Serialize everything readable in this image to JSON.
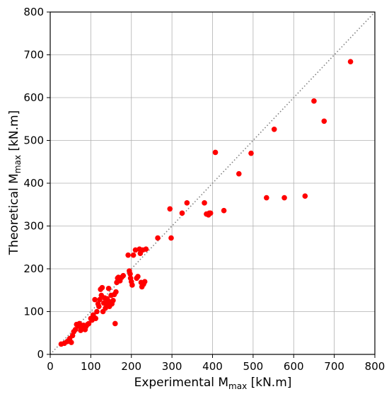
{
  "chart_data": {
    "type": "scatter",
    "xlabel": {
      "main": "Experimental M",
      "sub": "max",
      "unit": " [kN.m]"
    },
    "ylabel": {
      "main": "Theoretical M",
      "sub": "max",
      "unit": " [kN.m]"
    },
    "xlim": [
      0,
      800
    ],
    "ylim": [
      0,
      800
    ],
    "xticks": [
      "0",
      "100",
      "200",
      "300",
      "400",
      "500",
      "600",
      "700",
      "800"
    ],
    "yticks": [
      "0",
      "100",
      "200",
      "300",
      "400",
      "500",
      "600",
      "700",
      "800"
    ],
    "grid": true,
    "reference_line": {
      "style": "dotted",
      "color": "#808080",
      "from": [
        0,
        0
      ],
      "to": [
        800,
        800
      ]
    },
    "marker_color": "#ff0000",
    "points": [
      [
        27,
        24
      ],
      [
        35,
        26
      ],
      [
        42,
        30
      ],
      [
        48,
        37
      ],
      [
        52,
        28
      ],
      [
        55,
        44
      ],
      [
        58,
        53
      ],
      [
        62,
        58
      ],
      [
        65,
        70
      ],
      [
        70,
        66
      ],
      [
        72,
        72
      ],
      [
        75,
        56
      ],
      [
        78,
        60
      ],
      [
        82,
        68
      ],
      [
        86,
        58
      ],
      [
        88,
        65
      ],
      [
        92,
        70
      ],
      [
        95,
        72
      ],
      [
        100,
        84
      ],
      [
        103,
        80
      ],
      [
        106,
        92
      ],
      [
        108,
        86
      ],
      [
        110,
        128
      ],
      [
        112,
        84
      ],
      [
        115,
        100
      ],
      [
        118,
        118
      ],
      [
        120,
        112
      ],
      [
        122,
        128
      ],
      [
        124,
        152
      ],
      [
        126,
        138
      ],
      [
        128,
        156
      ],
      [
        130,
        100
      ],
      [
        132,
        120
      ],
      [
        134,
        132
      ],
      [
        136,
        108
      ],
      [
        138,
        118
      ],
      [
        140,
        130
      ],
      [
        142,
        126
      ],
      [
        144,
        154
      ],
      [
        146,
        112
      ],
      [
        148,
        122
      ],
      [
        150,
        138
      ],
      [
        152,
        118
      ],
      [
        155,
        126
      ],
      [
        158,
        140
      ],
      [
        160,
        72
      ],
      [
        162,
        146
      ],
      [
        164,
        168
      ],
      [
        166,
        178
      ],
      [
        168,
        180
      ],
      [
        172,
        172
      ],
      [
        176,
        180
      ],
      [
        180,
        184
      ],
      [
        192,
        232
      ],
      [
        195,
        195
      ],
      [
        197,
        188
      ],
      [
        198,
        178
      ],
      [
        200,
        170
      ],
      [
        202,
        162
      ],
      [
        205,
        232
      ],
      [
        210,
        244
      ],
      [
        213,
        178
      ],
      [
        216,
        182
      ],
      [
        220,
        246
      ],
      [
        222,
        236
      ],
      [
        224,
        168
      ],
      [
        226,
        158
      ],
      [
        228,
        244
      ],
      [
        230,
        164
      ],
      [
        233,
        170
      ],
      [
        236,
        246
      ],
      [
        265,
        272
      ],
      [
        295,
        340
      ],
      [
        298,
        272
      ],
      [
        325,
        330
      ],
      [
        337,
        354
      ],
      [
        380,
        354
      ],
      [
        385,
        328
      ],
      [
        390,
        326
      ],
      [
        392,
        330
      ],
      [
        395,
        330
      ],
      [
        407,
        472
      ],
      [
        428,
        336
      ],
      [
        465,
        422
      ],
      [
        495,
        470
      ],
      [
        533,
        366
      ],
      [
        552,
        526
      ],
      [
        577,
        366
      ],
      [
        628,
        370
      ],
      [
        650,
        592
      ],
      [
        675,
        545
      ],
      [
        740,
        684
      ]
    ]
  }
}
